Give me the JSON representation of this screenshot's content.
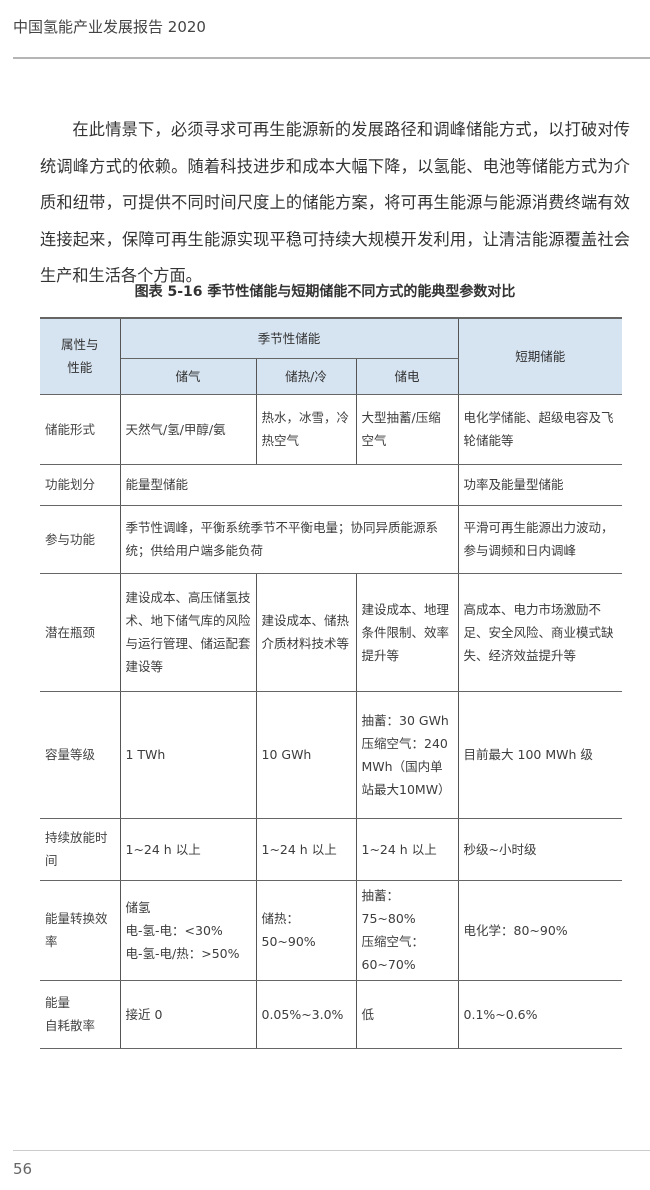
{
  "header": {
    "title": "中国氢能产业发展报告 2020"
  },
  "paragraph": "在此情景下，必须寻求可再生能源新的发展路径和调峰储能方式，以打破对传统调峰方式的依赖。随着科技进步和成本大幅下降，以氢能、电池等储能方式为介质和纽带，可提供不同时间尺度上的储能方案，将可再生能源与能源消费终端有效连接起来，保障可再生能源实现平稳可持续大规模开发利用，让清洁能源覆盖社会生产和生活各个方面。",
  "table": {
    "caption": "图表 5-16  季节性储能与短期储能不同方式的能典型参数对比",
    "headers": {
      "attr": "属性与\n性能",
      "seasonal": "季节性储能",
      "gas": "储气",
      "heat": "储热/冷",
      "elec": "储电",
      "short": "短期储能"
    },
    "rows": [
      {
        "label": "储能形式",
        "gas": "天然气/氢/甲醇/氨",
        "heat": "热水，冰雪，冷热空气",
        "elec": "大型抽蓄/压缩空气",
        "short": "电化学储能、超级电容及飞轮储能等"
      },
      {
        "label": "功能划分",
        "seasonal": "能量型储能",
        "short": "功率及能量型储能"
      },
      {
        "label": "参与功能",
        "seasonal": "季节性调峰，平衡系统季节不平衡电量；协同异质能源系统；供给用户端多能负荷",
        "short": "平滑可再生能源出力波动，参与调频和日内调峰"
      },
      {
        "label": "潜在瓶颈",
        "gas": "建设成本、高压储氢技术、地下储气库的风险与运行管理、储运配套建设等",
        "heat": "建设成本、储热介质材料技术等",
        "elec": "建设成本、地理条件限制、效率提升等",
        "short": "高成本、电力市场激励不足、安全风险、商业模式缺失、经济效益提升等"
      },
      {
        "label": "容量等级",
        "gas": "1 TWh",
        "heat": "10 GWh",
        "elec": "抽蓄：30 GWh\n压缩空气：240 MWh（国内单站最大10MW）",
        "short": "目前最大 100 MWh 级"
      },
      {
        "label": "持续放能时间",
        "gas": "1~24 h 以上",
        "heat": "1~24 h 以上",
        "elec": "1~24 h 以上",
        "short": "秒级~小时级"
      },
      {
        "label": "能量转换效率",
        "gas": "储氢\n电-氢-电：<30%\n电-氢-电/热：>50%",
        "heat": "储热：50~90%",
        "elec": "抽蓄：75~80%\n压缩空气：60~70%",
        "short": "电化学：80~90%"
      },
      {
        "label": "能量\n自耗散率",
        "gas": "接近  0",
        "heat": "0.05%~3.0%",
        "elec": "低",
        "short": "0.1%~0.6%"
      }
    ]
  },
  "footer": {
    "page_number": "56"
  }
}
